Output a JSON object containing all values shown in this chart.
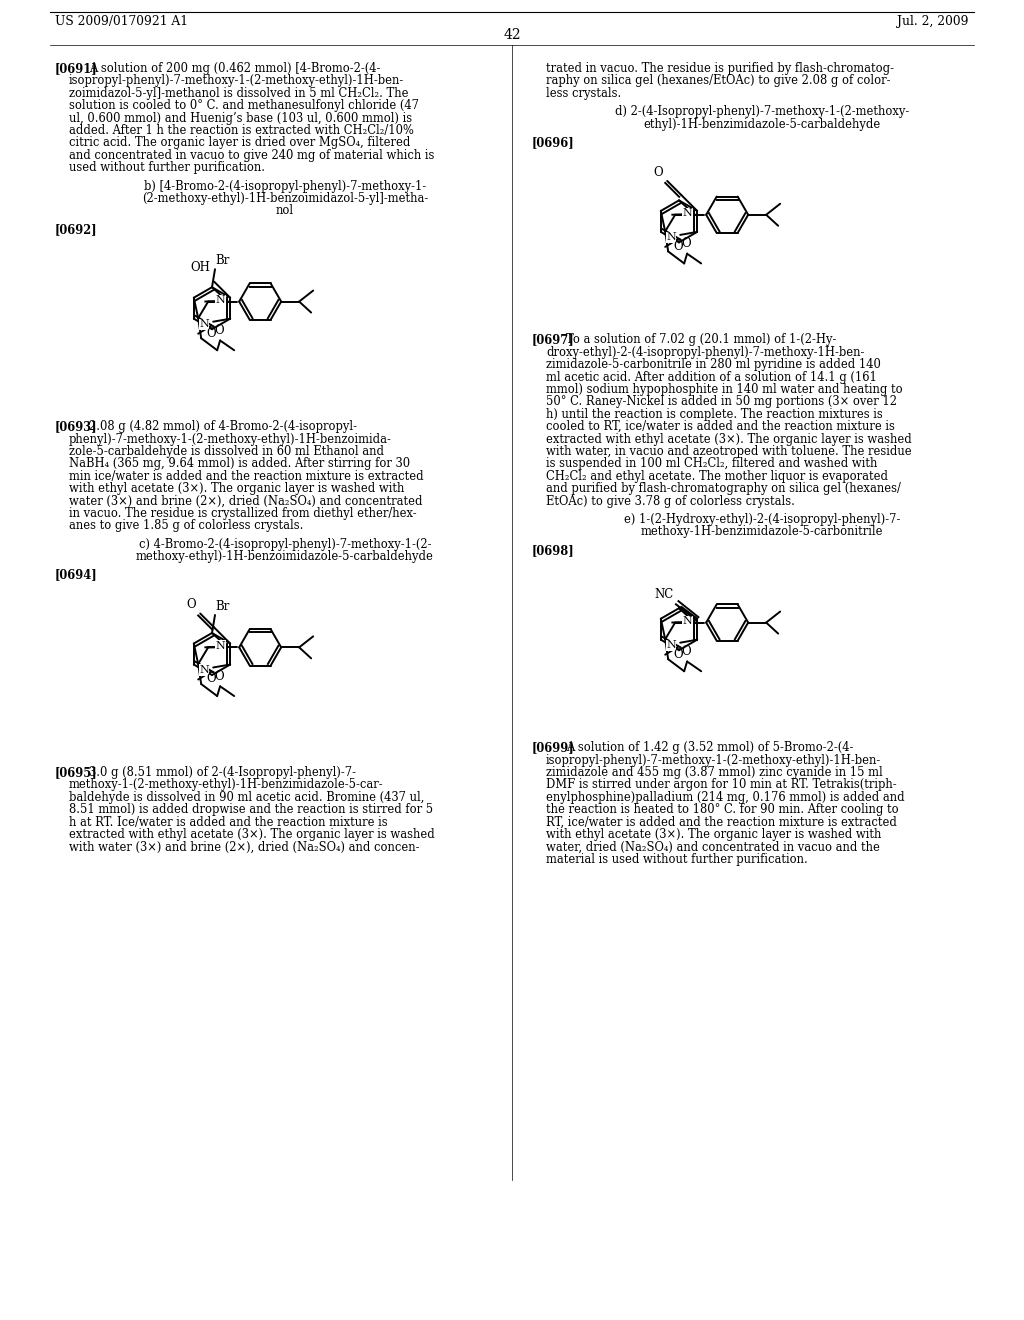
{
  "patent_number": "US 2009/0170921 A1",
  "patent_date": "Jul. 2, 2009",
  "page_number": "42",
  "background_color": "#ffffff",
  "paragraphs_left": [
    {
      "tag": "[0691]",
      "lines": [
        "A solution of 200 mg (0.462 mmol) [4-Bromo-2-(4-",
        "isopropyl-phenyl)-7-methoxy-1-(2-methoxy-ethyl)-1H-ben-",
        "zoimidazol-5-yl]-methanol is dissolved in 5 ml CH₂Cl₂. The",
        "solution is cooled to 0° C. and methanesulfonyl chloride (47",
        "ul, 0.600 mmol) and Huenig’s base (103 ul, 0.600 mmol) is",
        "added. After 1 h the reaction is extracted with CH₂Cl₂/10%",
        "citric acid. The organic layer is dried over MgSO₄, filtered",
        "and concentrated in vacuo to give 240 mg of material which is",
        "used without further purification."
      ]
    },
    {
      "tag": "",
      "lines": [
        "b) [4-Bromo-2-(4-isopropyl-phenyl)-7-methoxy-1-",
        "(2-methoxy-ethyl)-1H-benzoimidazol-5-yl]-metha-",
        "nol"
      ],
      "centered": true
    },
    {
      "tag": "[0692]",
      "lines": []
    },
    {
      "tag": "[0693]",
      "lines": [
        "2.08 g (4.82 mmol) of 4-Bromo-2-(4-isopropyl-",
        "phenyl)-7-methoxy-1-(2-methoxy-ethyl)-1H-benzoimida-",
        "zole-5-carbaldehyde is dissolved in 60 ml Ethanol and",
        "NaBH₄ (365 mg, 9.64 mmol) is added. After stirring for 30",
        "min ice/water is added and the reaction mixture is extracted",
        "with ethyl acetate (3×). The organic layer is washed with",
        "water (3×) and brine (2×), dried (Na₂SO₄) and concentrated",
        "in vacuo. The residue is crystallized from diethyl ether/hex-",
        "anes to give 1.85 g of colorless crystals."
      ]
    },
    {
      "tag": "",
      "lines": [
        "c) 4-Bromo-2-(4-isopropyl-phenyl)-7-methoxy-1-(2-",
        "methoxy-ethyl)-1H-benzoimidazole-5-carbaldehyde"
      ],
      "centered": true
    },
    {
      "tag": "[0694]",
      "lines": []
    },
    {
      "tag": "[0695]",
      "lines": [
        "3.0 g (8.51 mmol) of 2-(4-Isopropyl-phenyl)-7-",
        "methoxy-1-(2-methoxy-ethyl)-1H-benzimidazole-5-car-",
        "baldehyde is dissolved in 90 ml acetic acid. Bromine (437 ul,",
        "8.51 mmol) is added dropwise and the reaction is stirred for 5",
        "h at RT. Ice/water is added and the reaction mixture is",
        "extracted with ethyl acetate (3×). The organic layer is washed",
        "with water (3×) and brine (2×), dried (Na₂SO₄) and concen-"
      ]
    }
  ],
  "paragraphs_right": [
    {
      "tag": "",
      "lines": [
        "trated in vacuo. The residue is purified by flash-chromatog-",
        "raphy on silica gel (hexanes/EtOAc) to give 2.08 g of color-",
        "less crystals."
      ]
    },
    {
      "tag": "",
      "lines": [
        "d) 2-(4-Isopropyl-phenyl)-7-methoxy-1-(2-methoxy-",
        "ethyl)-1H-benzimidazole-5-carbaldehyde"
      ],
      "centered": true
    },
    {
      "tag": "[0696]",
      "lines": []
    },
    {
      "tag": "[0697]",
      "lines": [
        "To a solution of 7.02 g (20.1 mmol) of 1-(2-Hy-",
        "droxy-ethyl)-2-(4-isopropyl-phenyl)-7-methoxy-1H-ben-",
        "zimidazole-5-carbonitrile in 280 ml pyridine is added 140",
        "ml acetic acid. After addition of a solution of 14.1 g (161",
        "mmol) sodium hypophosphite in 140 ml water and heating to",
        "50° C. Raney-Nickel is added in 50 mg portions (3× over 12",
        "h) until the reaction is complete. The reaction mixtures is",
        "cooled to RT, ice/water is added and the reaction mixture is",
        "extracted with ethyl acetate (3×). The organic layer is washed",
        "with water, in vacuo and azeotroped with toluene. The residue",
        "is suspended in 100 ml CH₂Cl₂, filtered and washed with",
        "CH₂Cl₂ and ethyl acetate. The mother liquor is evaporated",
        "and purified by flash-chromatography on silica gel (hexanes/",
        "EtOAc) to give 3.78 g of colorless crystals."
      ]
    },
    {
      "tag": "",
      "lines": [
        "e) 1-(2-Hydroxy-ethyl)-2-(4-isopropyl-phenyl)-7-",
        "methoxy-1H-benzimidazole-5-carbonitrile"
      ],
      "centered": true
    },
    {
      "tag": "[0698]",
      "lines": []
    },
    {
      "tag": "[0699]",
      "lines": [
        "A solution of 1.42 g (3.52 mmol) of 5-Bromo-2-(4-",
        "isopropyl-phenyl)-7-methoxy-1-(2-methoxy-ethyl)-1H-ben-",
        "zimidazole and 455 mg (3.87 mmol) zinc cyanide in 15 ml",
        "DMF is stirred under argon for 10 min at RT. Tetrakis(triph-",
        "enylphosphine)palladium (214 mg, 0.176 mmol) is added and",
        "the reaction is heated to 180° C. for 90 min. After cooling to",
        "RT, ice/water is added and the reaction mixture is extracted",
        "with ethyl acetate (3×). The organic layer is washed with",
        "water, dried (Na₂SO₄) and concentrated in vacuo and the",
        "material is used without further purification."
      ]
    }
  ]
}
